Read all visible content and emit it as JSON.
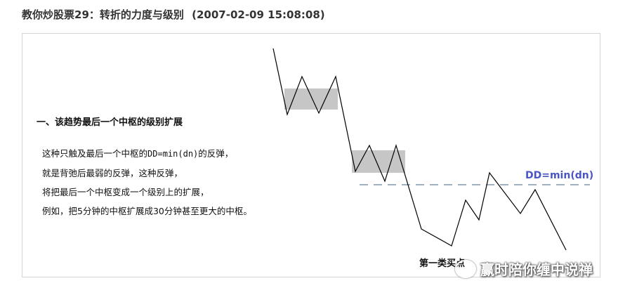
{
  "header": {
    "title": "教你炒股票29：转折的力度与级别",
    "timestamp": "(2007-02-09 15:08:08)"
  },
  "article": {
    "section_heading": "一、该趋势最后一个中枢的级别扩展",
    "line1_pre": "这种只触及最后一个中枢的",
    "line1_code": "DD=min(dn)",
    "line1_post": "的反弹，",
    "line2": "就是背弛后最弱的反弹，这种反弹，",
    "line3": "将把最后一个中枢变成一个级别上的扩展，",
    "line4": "例如，把5分钟的中枢扩展成30分钟甚至更大的中枢。"
  },
  "diagram": {
    "dd_label": "DD=min(dn)",
    "point_label": "第一类买点",
    "colors": {
      "line": "#000000",
      "zone": "#c6c6c6",
      "dashed": "#6b7f95",
      "dd_text": "#4a55c4"
    }
  },
  "watermark": {
    "icon": "wechat-icon",
    "text": "赢时陪你缠中说禅"
  }
}
